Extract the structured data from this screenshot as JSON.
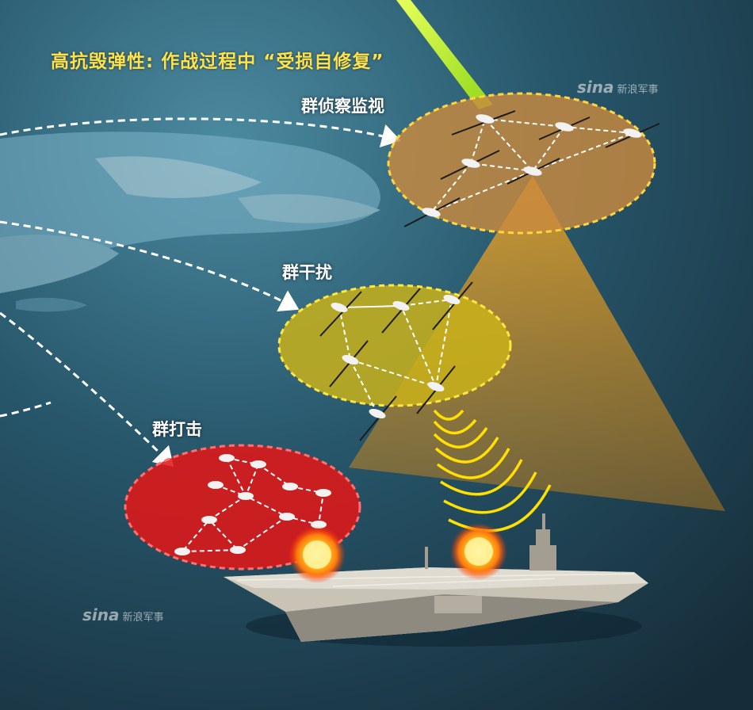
{
  "headline": "高抗毁弹性: 作战过程中 “受损自修复”",
  "groups": {
    "recon_label": "群侦察监视",
    "jamming_label": "群干扰",
    "strike_label": "群打击"
  },
  "watermark": {
    "logo": "sina",
    "name": "新浪军事"
  },
  "colors": {
    "recon_zone": "#c98a3e",
    "jamming_zone": "#c9b21a",
    "strike_zone": "#e01818",
    "signal_waves": "#ffe000",
    "laser_beam": "#c8ff2a",
    "cone": "#f0a020",
    "headline_text": "#ffe24a"
  },
  "icons": [
    "drone-icon",
    "explosion-icon",
    "aircraft-carrier"
  ]
}
